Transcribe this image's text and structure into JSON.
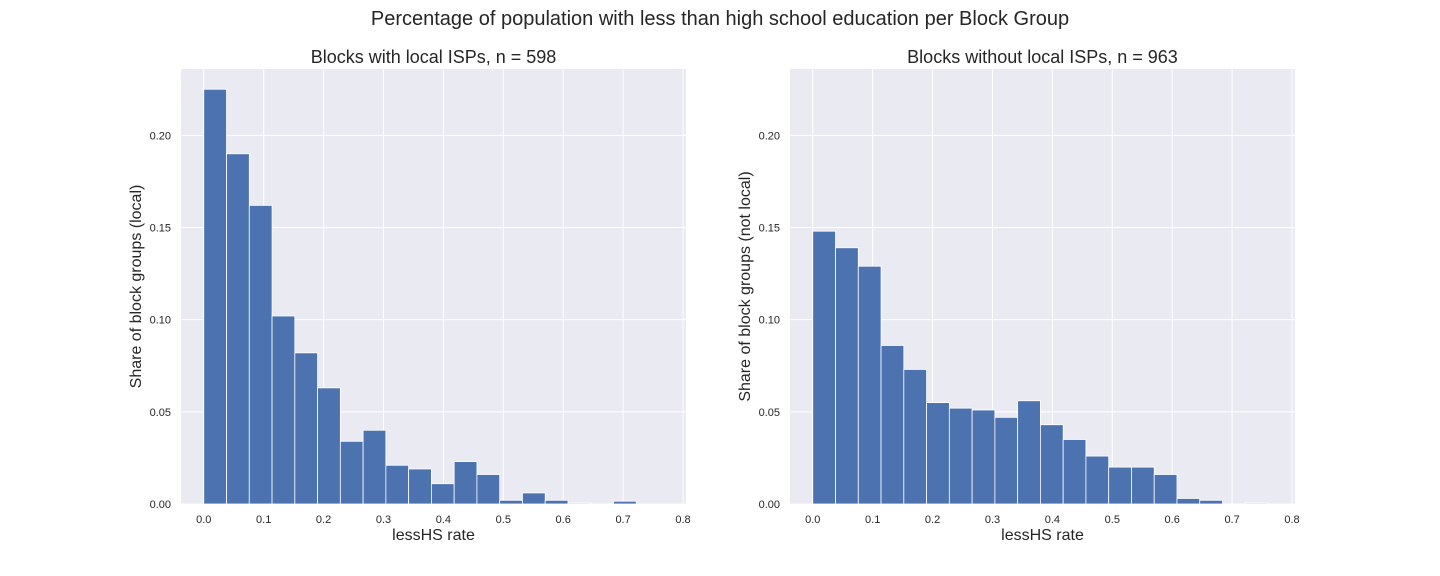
{
  "suptitle": "Percentage of population with less than high school education per Block Group",
  "colors": {
    "bar": "#4c72b0",
    "plot_bg": "#eaeaf2",
    "grid": "#ffffff"
  },
  "chart_data": [
    {
      "type": "bar",
      "title": "Blocks with local ISPs, n = 598",
      "xlabel": "lessHS rate",
      "ylabel": "Share of block groups (local)",
      "xlim": [
        -0.038,
        0.805
      ],
      "ylim": [
        0,
        0.236
      ],
      "grid": true,
      "xticks": [
        "0.0",
        "0.1",
        "0.2",
        "0.3",
        "0.4",
        "0.5",
        "0.6",
        "0.7",
        "0.8"
      ],
      "yticks": [
        "0.00",
        "0.05",
        "0.10",
        "0.15",
        "0.20"
      ],
      "bin_width": 0.038,
      "bin_starts": [
        0.0,
        0.038,
        0.076,
        0.114,
        0.152,
        0.19,
        0.228,
        0.266,
        0.304,
        0.342,
        0.38,
        0.418,
        0.456,
        0.494,
        0.532,
        0.57,
        0.608,
        0.646,
        0.684,
        0.722,
        0.76
      ],
      "values": [
        0.225,
        0.19,
        0.162,
        0.102,
        0.082,
        0.063,
        0.034,
        0.04,
        0.021,
        0.019,
        0.011,
        0.023,
        0.016,
        0.002,
        0.006,
        0.002,
        0.0005,
        0.0,
        0.0015,
        0.0,
        0.0
      ]
    },
    {
      "type": "bar",
      "title": "Blocks without local ISPs, n = 963",
      "xlabel": "lessHS rate",
      "ylabel": "Share of block groups (not local)",
      "xlim": [
        -0.038,
        0.805
      ],
      "ylim": [
        0,
        0.236
      ],
      "grid": true,
      "xticks": [
        "0.0",
        "0.1",
        "0.2",
        "0.3",
        "0.4",
        "0.5",
        "0.6",
        "0.7",
        "0.8"
      ],
      "yticks": [
        "0.00",
        "0.05",
        "0.10",
        "0.15",
        "0.20"
      ],
      "bin_width": 0.038,
      "bin_starts": [
        0.0,
        0.038,
        0.076,
        0.114,
        0.152,
        0.19,
        0.228,
        0.266,
        0.304,
        0.342,
        0.38,
        0.418,
        0.456,
        0.494,
        0.532,
        0.57,
        0.608,
        0.646,
        0.684,
        0.722,
        0.76
      ],
      "values": [
        0.148,
        0.139,
        0.129,
        0.086,
        0.073,
        0.055,
        0.052,
        0.051,
        0.047,
        0.056,
        0.043,
        0.035,
        0.026,
        0.02,
        0.02,
        0.016,
        0.003,
        0.002,
        0.0,
        0.0005,
        0.0
      ]
    }
  ]
}
